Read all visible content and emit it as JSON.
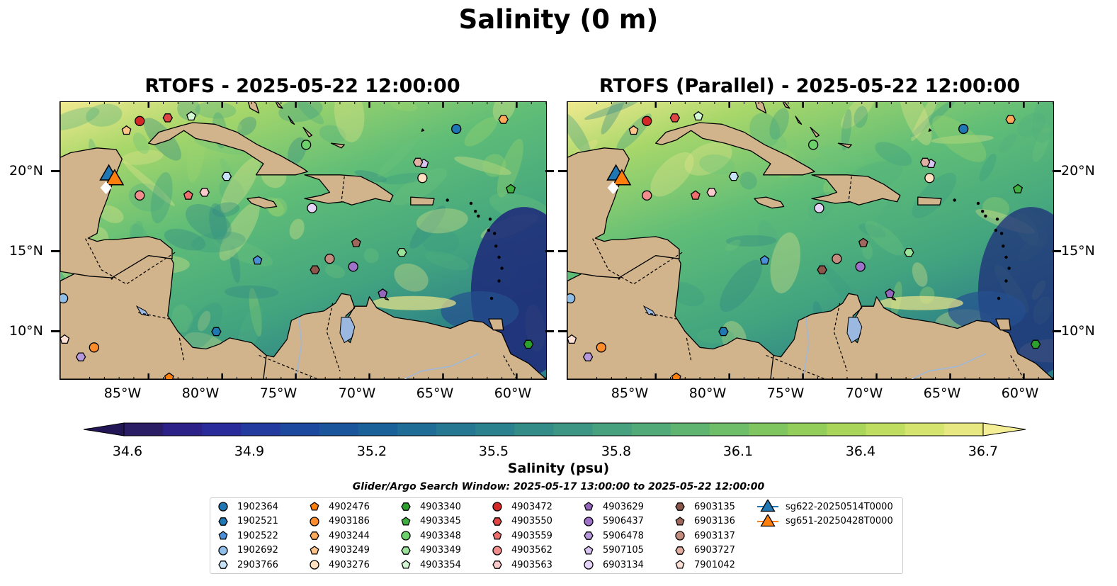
{
  "figure": {
    "title": "Salinity (0 m)",
    "panels": [
      {
        "title": "RTOFS - 2025-05-22 12:00:00"
      },
      {
        "title": "RTOFS (Parallel) - 2025-05-22 12:00:00"
      }
    ],
    "lat_ticks": [
      "20°N",
      "15°N",
      "10°N"
    ],
    "lon_ticks": [
      "85°W",
      "80°W",
      "75°W",
      "70°W",
      "65°W",
      "60°W"
    ],
    "colorbar": {
      "label": "Salinity (psu)",
      "ticks": [
        "34.6",
        "34.9",
        "35.2",
        "35.5",
        "35.8",
        "36.1",
        "36.4",
        "36.7"
      ],
      "colormap": "haline",
      "extend": "both"
    },
    "search_window": "Glider/Argo Search Window: 2025-05-17 13:00:00 to 2025-05-22 12:00:00",
    "land_color": "#d2b48c",
    "lake_color": "#9ab8e0"
  },
  "chart_data": {
    "type": "scatter",
    "x_range_lon": [
      -91,
      -58
    ],
    "y_range_lat": [
      7,
      24.5
    ],
    "lat_tick_values": [
      20,
      15,
      10
    ],
    "lon_tick_values": [
      -85,
      -80,
      -75,
      -70,
      -65,
      -60
    ],
    "colorbar_min": 34.6,
    "colorbar_max": 36.7,
    "series": [
      {
        "name": "1902364",
        "marker": "circle",
        "color": "#1f77b4",
        "lon": -64.1,
        "lat": 22.8
      },
      {
        "name": "1902521",
        "marker": "hexagon",
        "color": "#1f77b4",
        "lon": -80.4,
        "lat": 10.0
      },
      {
        "name": "1902522",
        "marker": "pentagon",
        "color": "#4a90d9",
        "lon": -77.6,
        "lat": 14.5
      },
      {
        "name": "1902692",
        "marker": "circle",
        "color": "#8fbfe8",
        "lon": -90.8,
        "lat": 12.1
      },
      {
        "name": "2903766",
        "marker": "hexagon",
        "color": "#c6e2f7",
        "lon": -79.7,
        "lat": 19.8
      },
      {
        "name": "4902476",
        "marker": "pentagon",
        "color": "#ff7f0e",
        "lon": -83.6,
        "lat": 7.1
      },
      {
        "name": "4903186",
        "marker": "circle",
        "color": "#ff8c2a",
        "lon": -88.7,
        "lat": 9.0
      },
      {
        "name": "4903244",
        "marker": "hexagon",
        "color": "#ffa95a",
        "lon": -60.9,
        "lat": 23.4
      },
      {
        "name": "4903249",
        "marker": "pentagon",
        "color": "#ffc48a",
        "lon": -86.5,
        "lat": 22.7
      },
      {
        "name": "4903276",
        "marker": "circle",
        "color": "#ffe0c0",
        "lon": -66.4,
        "lat": 19.7
      },
      {
        "name": "4903340",
        "marker": "hexagon",
        "color": "#2ca02c",
        "lon": -59.2,
        "lat": 9.2
      },
      {
        "name": "4903345",
        "marker": "pentagon",
        "color": "#3fb03f",
        "lon": -60.4,
        "lat": 19.0
      },
      {
        "name": "4903348",
        "marker": "circle",
        "color": "#6bd16b",
        "lon": -74.3,
        "lat": 21.8
      },
      {
        "name": "4903349",
        "marker": "hexagon",
        "color": "#9be39b",
        "lon": -67.8,
        "lat": 15.0
      },
      {
        "name": "4903354",
        "marker": "pentagon",
        "color": "#d4f7d4",
        "lon": -82.1,
        "lat": 23.6
      },
      {
        "name": "4903472",
        "marker": "circle",
        "color": "#d62728",
        "lon": -85.6,
        "lat": 23.3
      },
      {
        "name": "4903550",
        "marker": "hexagon",
        "color": "#e04545",
        "lon": -83.7,
        "lat": 23.5
      },
      {
        "name": "4903559",
        "marker": "pentagon",
        "color": "#ee6d6d",
        "lon": -82.3,
        "lat": 18.6
      },
      {
        "name": "4903562",
        "marker": "circle",
        "color": "#f08c8c",
        "lon": -85.6,
        "lat": 18.6
      },
      {
        "name": "4903563",
        "marker": "hexagon",
        "color": "#fbcaca",
        "lon": -81.2,
        "lat": 18.8
      },
      {
        "name": "4903629",
        "marker": "pentagon",
        "color": "#9467bd",
        "lon": -69.1,
        "lat": 12.4
      },
      {
        "name": "5906437",
        "marker": "circle",
        "color": "#9e72c8",
        "lon": -71.1,
        "lat": 14.1
      },
      {
        "name": "5906478",
        "marker": "hexagon",
        "color": "#b898dc",
        "lon": -89.6,
        "lat": 8.4
      },
      {
        "name": "5907105",
        "marker": "pentagon",
        "color": "#d8c4f0",
        "lon": -66.3,
        "lat": 20.6
      },
      {
        "name": "6903134",
        "marker": "circle",
        "color": "#e6d4f8",
        "lon": -73.9,
        "lat": 17.8
      },
      {
        "name": "6903135",
        "marker": "hexagon",
        "color": "#8c564b",
        "lon": -73.7,
        "lat": 13.9
      },
      {
        "name": "6903136",
        "marker": "pentagon",
        "color": "#a0685c",
        "lon": -70.9,
        "lat": 15.6
      },
      {
        "name": "6903137",
        "marker": "circle",
        "color": "#c48c7e",
        "lon": -72.7,
        "lat": 14.6
      },
      {
        "name": "6903727",
        "marker": "hexagon",
        "color": "#e2b0a2",
        "lon": -66.7,
        "lat": 20.7
      },
      {
        "name": "7901042",
        "marker": "pentagon",
        "color": "#fde0d6",
        "lon": -90.7,
        "lat": 9.5
      },
      {
        "name": "sg622-20250514T0000",
        "marker": "triangle",
        "color": "#1f77b4",
        "lon": -87.7,
        "lat": 19.8
      },
      {
        "name": "sg651-20250428T0000",
        "marker": "triangle",
        "color": "#ff7f0e",
        "lon": -87.3,
        "lat": 19.5
      }
    ]
  }
}
